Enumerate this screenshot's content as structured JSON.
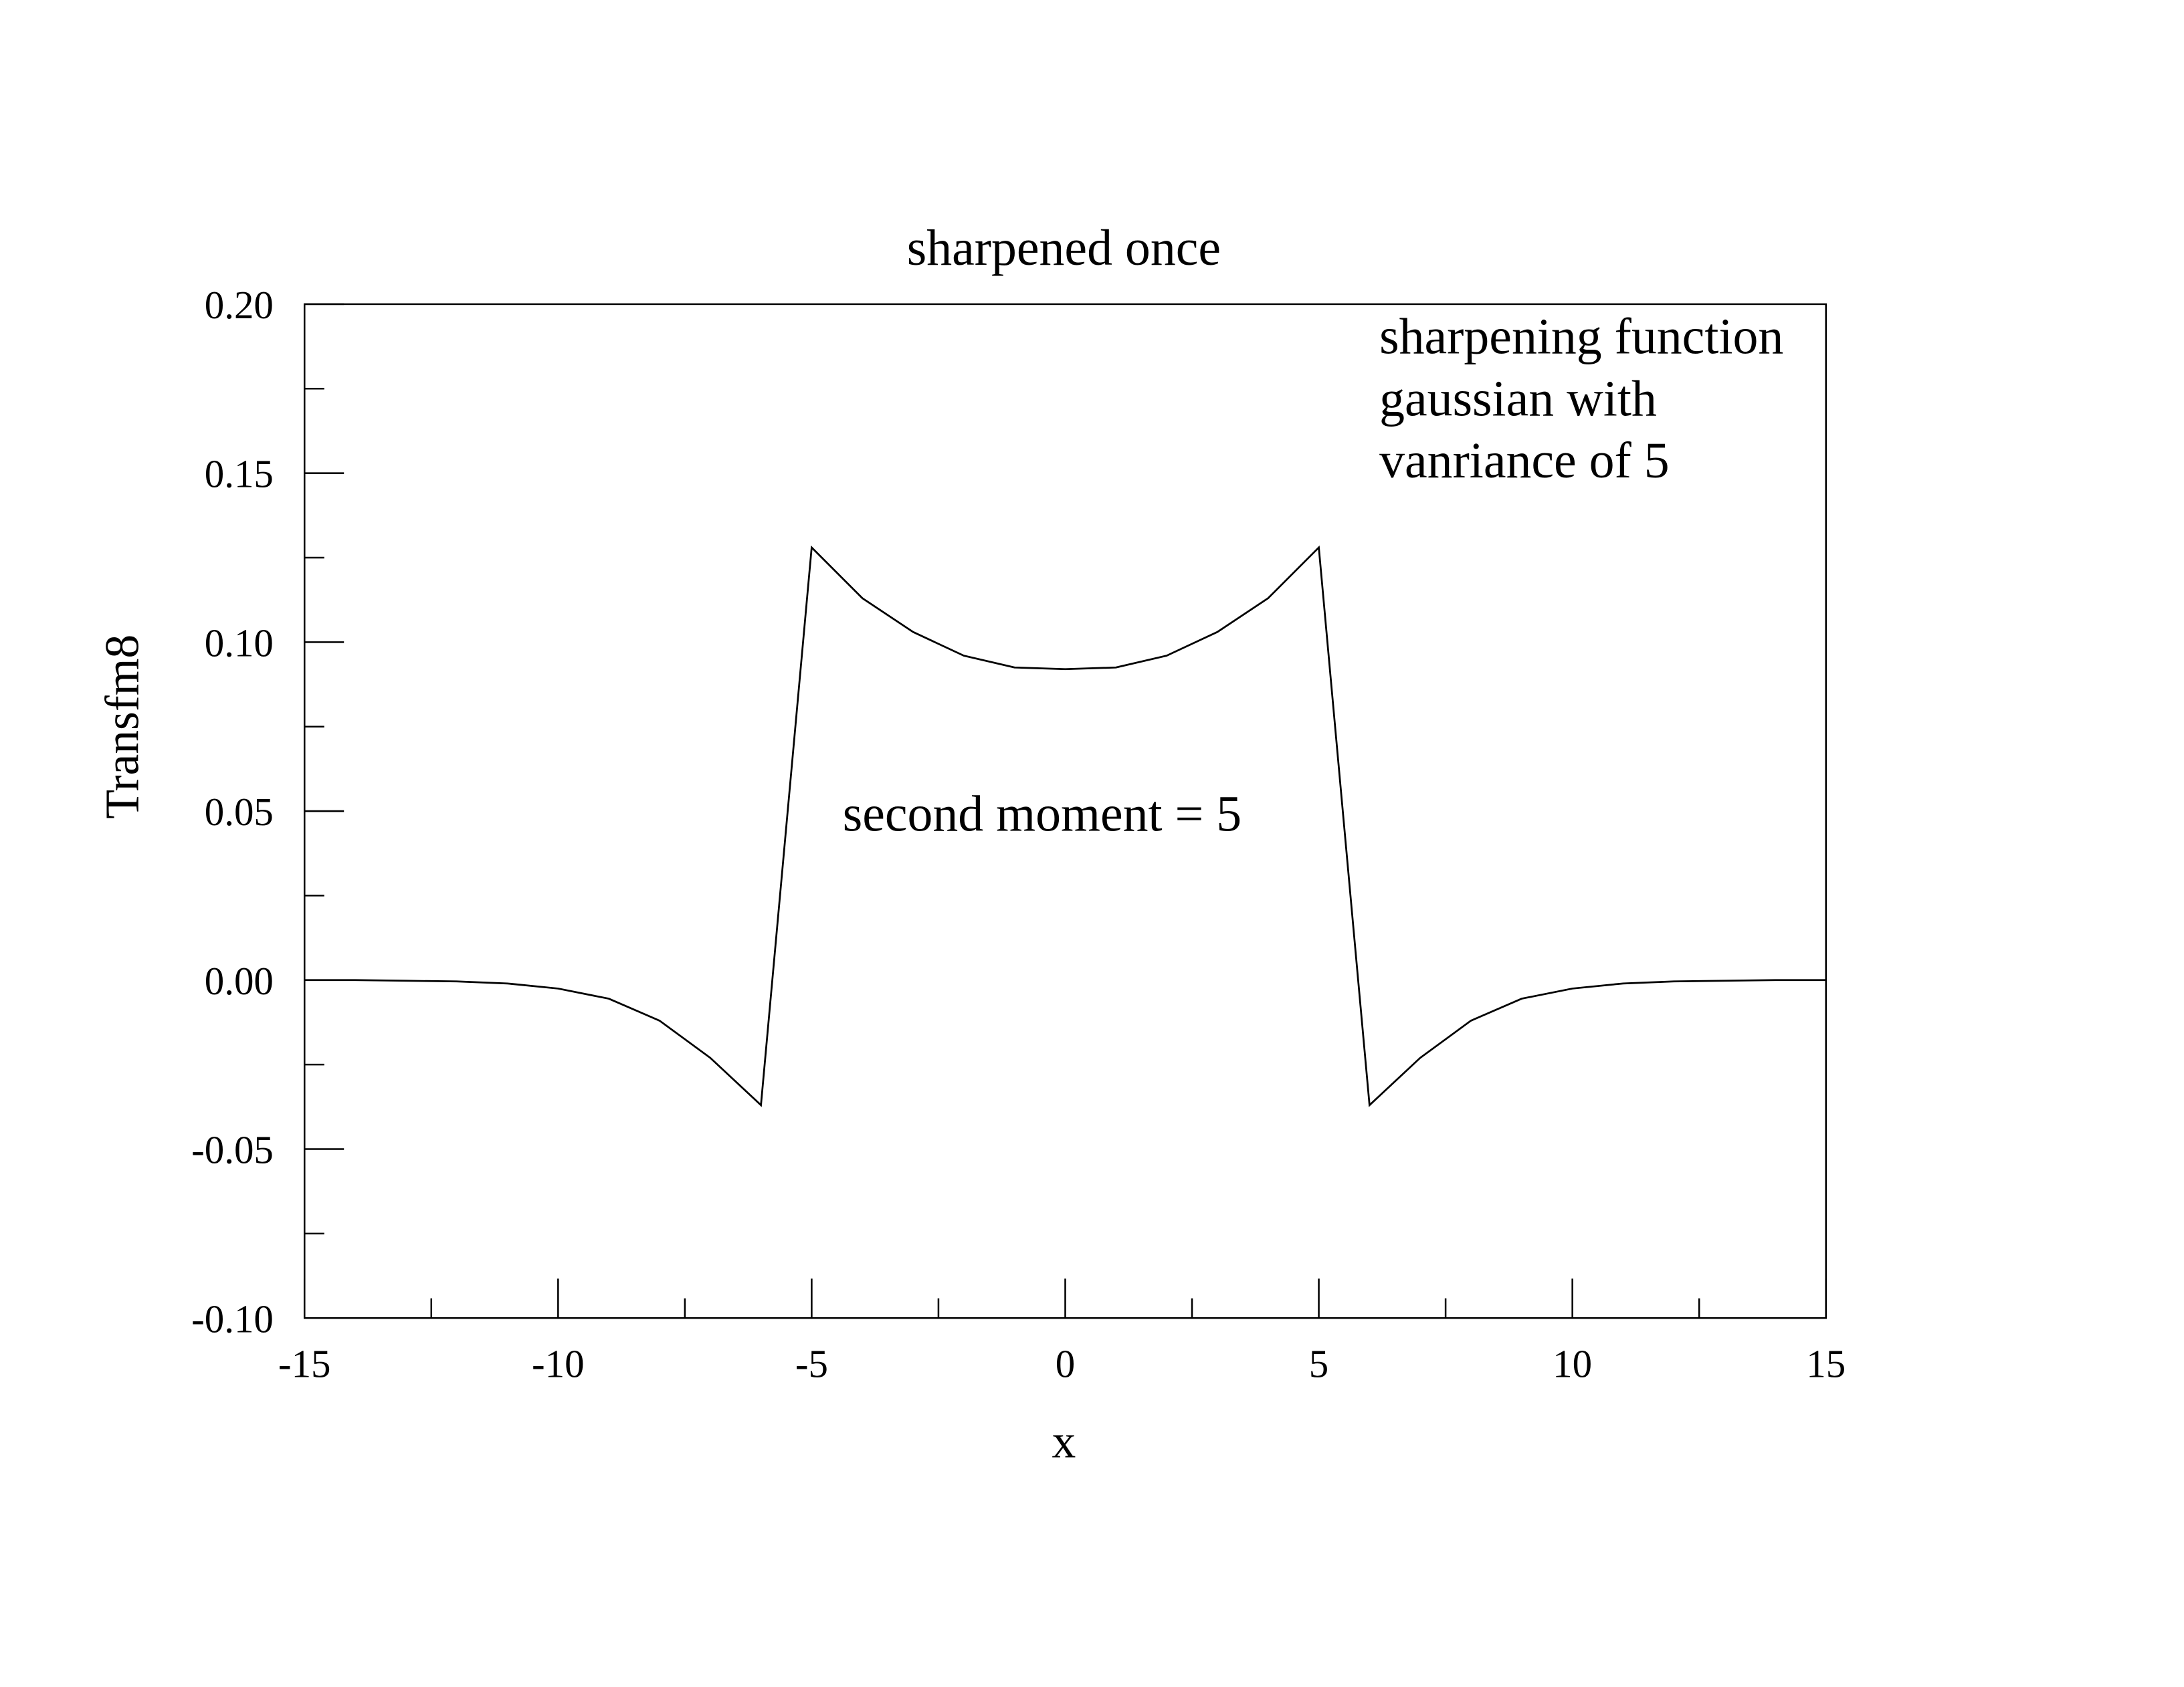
{
  "chart_data": {
    "type": "line",
    "title": "sharpened once",
    "x_label": "x",
    "y_label": "Transfm8",
    "annotations": [
      "second moment = 5",
      "sharpening function",
      "gaussian with",
      "vanriance of 5"
    ],
    "x": [
      -15,
      -14,
      -13,
      -12,
      -11,
      -10,
      -9,
      -8,
      -7,
      -6,
      -5,
      -4,
      -3,
      -2,
      -1,
      0,
      1,
      2,
      3,
      4,
      5,
      6,
      7,
      8,
      9,
      10,
      11,
      12,
      13,
      14,
      15
    ],
    "values": [
      0,
      0,
      -0.0002,
      -0.0004,
      -0.001,
      -0.0025,
      -0.0055,
      -0.012,
      -0.023,
      -0.037,
      0.128,
      0.113,
      0.103,
      0.096,
      0.0925,
      0.092,
      0.0925,
      0.096,
      0.103,
      0.113,
      0.128,
      -0.037,
      -0.023,
      -0.012,
      -0.0055,
      -0.0025,
      -0.001,
      -0.0004,
      -0.0002,
      0,
      0
    ],
    "color": "#000000",
    "xlim": [
      -15,
      15
    ],
    "ylim": [
      -0.1,
      0.2
    ],
    "xticks": [
      -15,
      -10,
      -5,
      0,
      5,
      10,
      15
    ],
    "yticks": [
      {
        "value": -0.1,
        "label": "-0.10"
      },
      {
        "value": -0.05,
        "label": "-0.05"
      },
      {
        "value": 0,
        "label": "0.00"
      },
      {
        "value": 0.05,
        "label": "0.05"
      },
      {
        "value": 0.1,
        "label": "0.10"
      },
      {
        "value": 0.15,
        "label": "0.15"
      },
      {
        "value": 0.2,
        "label": "0.20"
      }
    ],
    "xminor_ticks": [
      -12.5,
      -7.5,
      -2.5,
      2.5,
      7.5,
      12.5
    ],
    "yminor_ticks": [
      -0.075,
      -0.025,
      0.025,
      0.075,
      0.125,
      0.175
    ],
    "grid": false
  }
}
